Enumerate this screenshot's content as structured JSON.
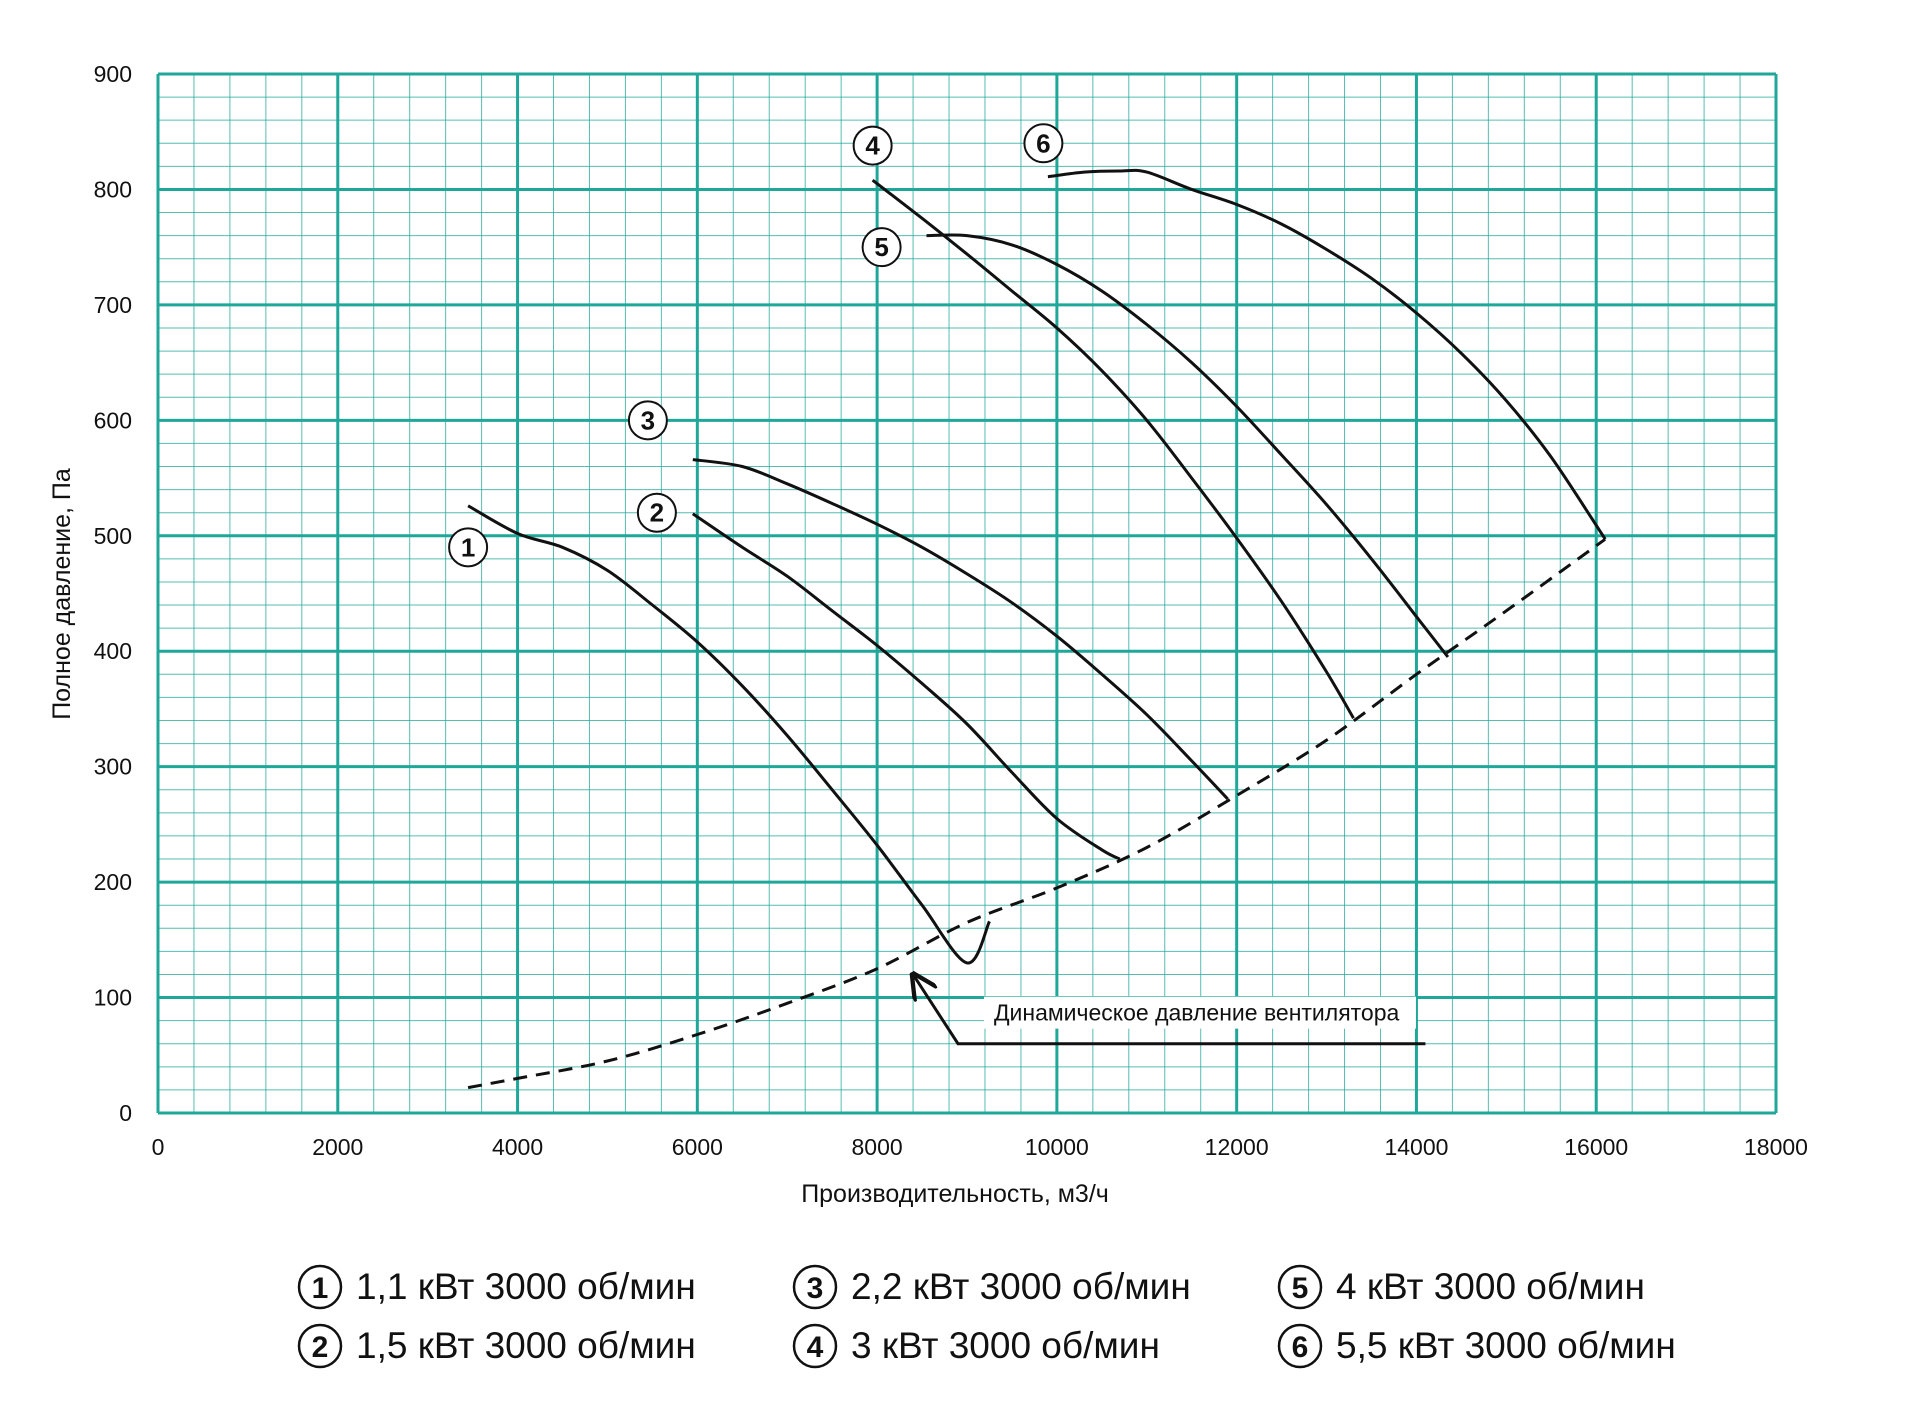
{
  "chart_data": {
    "type": "line",
    "xlabel": "Производительность, м3/ч",
    "ylabel": "Полное давление, Па",
    "xlim": [
      0,
      18000
    ],
    "ylim": [
      0,
      900
    ],
    "x_ticks": [
      "0",
      "2000",
      "4000",
      "6000",
      "8000",
      "10000",
      "12000",
      "14000",
      "16000",
      "18000"
    ],
    "y_ticks": [
      "0",
      "100",
      "200",
      "300",
      "400",
      "500",
      "600",
      "700",
      "800",
      "900"
    ],
    "grid": true,
    "grid_color": "#1fa79a",
    "line_color": "#111111",
    "series": [
      {
        "name": "1",
        "x": [
          3450,
          4000,
          4500,
          5000,
          5500,
          6000,
          6500,
          7000,
          7500,
          8000,
          8500,
          9000,
          9250
        ],
        "y": [
          526,
          502,
          490,
          470,
          440,
          408,
          370,
          327,
          280,
          232,
          180,
          130,
          166
        ]
      },
      {
        "name": "2",
        "x": [
          5950,
          6500,
          7000,
          7500,
          8000,
          8500,
          9000,
          9500,
          10000,
          10500,
          10700
        ],
        "y": [
          519,
          490,
          465,
          435,
          405,
          372,
          337,
          295,
          255,
          228,
          220
        ]
      },
      {
        "name": "3",
        "x": [
          5950,
          6500,
          7000,
          7500,
          8000,
          8500,
          9000,
          9500,
          10000,
          10500,
          11000,
          11500,
          11900
        ],
        "y": [
          566,
          560,
          545,
          528,
          510,
          490,
          467,
          442,
          413,
          380,
          345,
          305,
          272
        ]
      },
      {
        "name": "4",
        "x": [
          7950,
          8500,
          9000,
          9500,
          10000,
          10500,
          11000,
          11500,
          12000,
          12500,
          13000,
          13300
        ],
        "y": [
          808,
          775,
          744,
          712,
          680,
          643,
          600,
          550,
          498,
          443,
          382,
          342
        ]
      },
      {
        "name": "5",
        "x": [
          8550,
          9000,
          9500,
          10000,
          10500,
          11000,
          11500,
          12000,
          12500,
          13000,
          13500,
          14000,
          14350
        ],
        "y": [
          760,
          760,
          752,
          735,
          712,
          683,
          650,
          612,
          570,
          527,
          480,
          430,
          395
        ]
      },
      {
        "name": "6",
        "x": [
          9900,
          10300,
          10700,
          11000,
          11500,
          12000,
          12500,
          13000,
          13500,
          14000,
          14500,
          15000,
          15500,
          16100
        ],
        "y": [
          811,
          815,
          816,
          815,
          800,
          787,
          770,
          748,
          723,
          693,
          658,
          617,
          568,
          497
        ]
      }
    ],
    "dynamic_pressure": {
      "label": "Динамическое давление вентилятора",
      "x": [
        3450,
        4000,
        5000,
        6000,
        7000,
        8000,
        9000,
        10000,
        11000,
        12000,
        13000,
        14000,
        15000,
        16100
      ],
      "y": [
        22,
        30,
        45,
        68,
        95,
        125,
        165,
        195,
        230,
        275,
        323,
        380,
        435,
        497
      ],
      "arrow_to": [
        8400,
        120
      ],
      "leader": [
        [
          8900,
          60
        ],
        [
          14100,
          60
        ]
      ],
      "label_at": [
        9300,
        80
      ]
    },
    "curve_labels": [
      {
        "text": "1",
        "x": 3450,
        "y": 490
      },
      {
        "text": "2",
        "x": 5550,
        "y": 520
      },
      {
        "text": "3",
        "x": 5450,
        "y": 600
      },
      {
        "text": "4",
        "x": 7950,
        "y": 838
      },
      {
        "text": "5",
        "x": 8050,
        "y": 750
      },
      {
        "text": "6",
        "x": 9850,
        "y": 840
      }
    ],
    "legend": [
      {
        "num": "1",
        "text": "1,1 кВт 3000 об/мин"
      },
      {
        "num": "2",
        "text": "1,5 кВт 3000 об/мин"
      },
      {
        "num": "3",
        "text": "2,2 кВт 3000 об/мин"
      },
      {
        "num": "4",
        "text": "3 кВт 3000 об/мин"
      },
      {
        "num": "5",
        "text": "4 кВт 3000 об/мин"
      },
      {
        "num": "6",
        "text": "5,5 кВт 3000 об/мин"
      }
    ],
    "legend_placement": "bottom"
  }
}
